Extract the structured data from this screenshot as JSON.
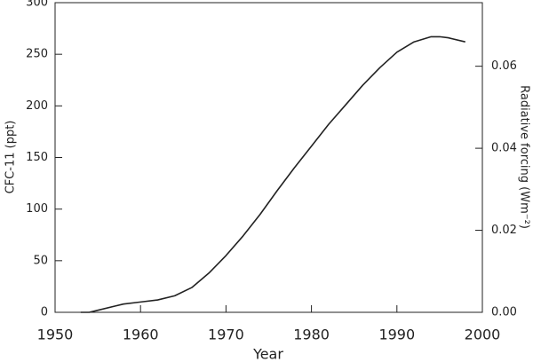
{
  "chart_data": {
    "type": "line",
    "xlabel": "Year",
    "ylabel": "CFC-11 (ppt)",
    "y2label": "Radiative forcing (Wm⁻²)",
    "x": [
      1953,
      1954,
      1955,
      1957,
      1958,
      1960,
      1962,
      1964,
      1966,
      1968,
      1970,
      1972,
      1974,
      1976,
      1978,
      1980,
      1982,
      1984,
      1986,
      1988,
      1990,
      1992,
      1994,
      1995,
      1996,
      1998
    ],
    "series": [
      {
        "name": "CFC-11",
        "color": "#222222",
        "values": [
          0,
          0,
          2,
          6,
          8,
          10,
          12,
          16,
          24,
          38,
          55,
          74,
          95,
          118,
          140,
          161,
          182,
          201,
          220,
          237,
          252,
          262,
          267,
          267,
          266,
          262
        ]
      }
    ],
    "xlim": [
      1950,
      2000
    ],
    "xticks": [
      1950,
      1960,
      1970,
      1980,
      1990,
      2000
    ],
    "ylim": [
      0,
      300
    ],
    "yticks": [
      0,
      50,
      100,
      150,
      200,
      250,
      300
    ],
    "y2lim": [
      0,
      0.0755
    ],
    "y2ticks": [
      {
        "value": 0,
        "label": "0.00"
      },
      0.02,
      0.04,
      0.06
    ]
  }
}
